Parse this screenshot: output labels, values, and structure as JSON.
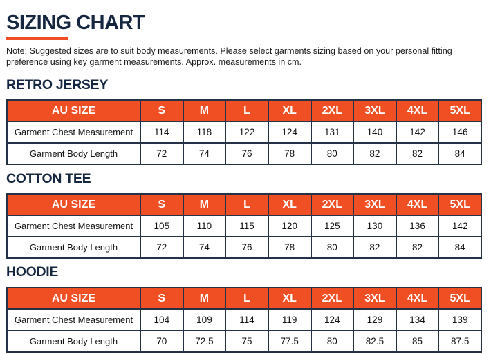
{
  "title": "SIZING CHART",
  "note": "Note: Suggested sizes are to suit body measurements. Please select garments sizing based on your personal fitting preference using key garment measurements. Approx. measurements in cm.",
  "colors": {
    "navy": "#142640",
    "orange": "#f04e23"
  },
  "headers": [
    "AU SIZE",
    "S",
    "M",
    "L",
    "XL",
    "2XL",
    "3XL",
    "4XL",
    "5XL"
  ],
  "sections": [
    {
      "title": "RETRO JERSEY",
      "rows": [
        [
          "Garment Chest Measurement",
          "114",
          "118",
          "122",
          "124",
          "131",
          "140",
          "142",
          "146"
        ],
        [
          "Garment Body Length",
          "72",
          "74",
          "76",
          "78",
          "80",
          "82",
          "82",
          "84"
        ]
      ]
    },
    {
      "title": "COTTON TEE",
      "rows": [
        [
          "Garment Chest Measurement",
          "105",
          "110",
          "115",
          "120",
          "125",
          "130",
          "136",
          "142"
        ],
        [
          "Garment Body Length",
          "72",
          "74",
          "76",
          "78",
          "80",
          "82",
          "82",
          "84"
        ]
      ]
    },
    {
      "title": "HOODIE",
      "rows": [
        [
          "Garment Chest Measurement",
          "104",
          "109",
          "114",
          "119",
          "124",
          "129",
          "134",
          "139"
        ],
        [
          "Garment Body Length",
          "70",
          "72.5",
          "75",
          "77.5",
          "80",
          "82.5",
          "85",
          "87.5"
        ]
      ]
    }
  ]
}
